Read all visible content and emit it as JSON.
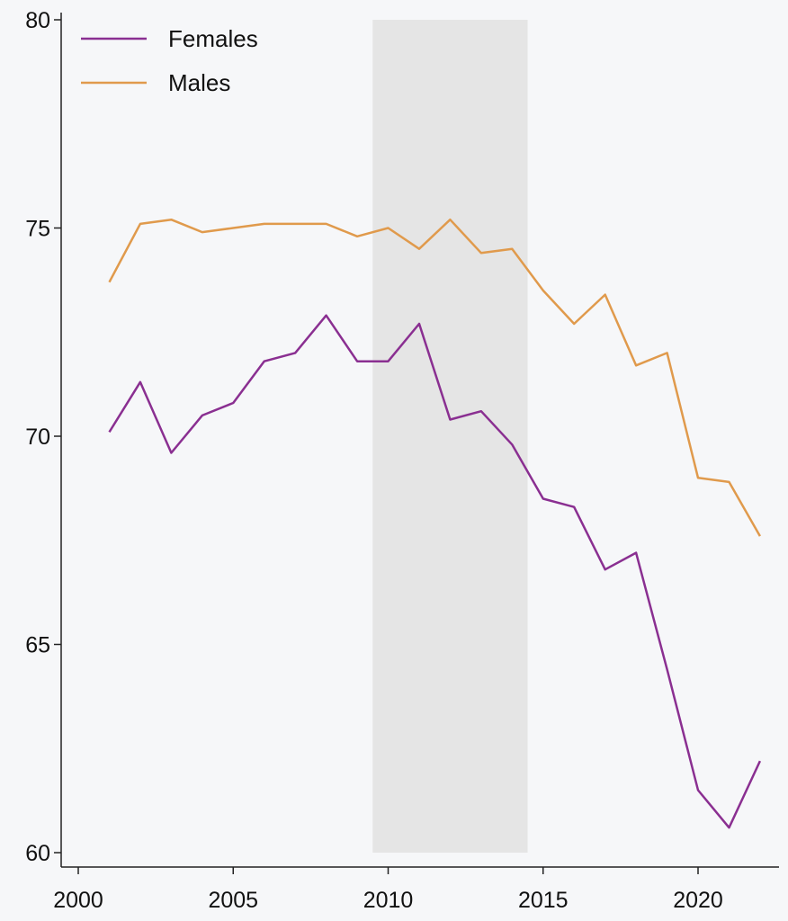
{
  "chart_data": {
    "type": "line",
    "title": "",
    "xlabel": "",
    "ylabel": "",
    "xlim": [
      2000,
      2022
    ],
    "ylim": [
      60,
      80
    ],
    "x_ticks": [
      2000,
      2005,
      2010,
      2015,
      2020
    ],
    "y_ticks": [
      60,
      65,
      70,
      75,
      80
    ],
    "grid": false,
    "legend_position": "top-left",
    "shaded_region": {
      "x_start": 2009.5,
      "x_end": 2014.5,
      "color": "#e5e5e5"
    },
    "x": [
      2001,
      2002,
      2003,
      2004,
      2005,
      2006,
      2007,
      2008,
      2009,
      2010,
      2011,
      2012,
      2013,
      2014,
      2015,
      2016,
      2017,
      2018,
      2019,
      2020,
      2021,
      2022
    ],
    "series": [
      {
        "name": "Females",
        "color": "#8a2f91",
        "values": [
          70.1,
          71.3,
          69.6,
          70.5,
          70.8,
          71.8,
          72.0,
          72.9,
          71.8,
          71.8,
          72.7,
          70.4,
          70.6,
          69.8,
          68.5,
          68.3,
          66.8,
          67.2,
          64.4,
          61.5,
          60.6,
          62.2
        ]
      },
      {
        "name": "Males",
        "color": "#e09a4c",
        "values": [
          73.7,
          75.1,
          75.2,
          74.9,
          75.0,
          75.1,
          75.1,
          75.1,
          74.8,
          75.0,
          74.5,
          75.2,
          74.4,
          74.5,
          73.5,
          72.7,
          73.4,
          71.7,
          72.0,
          69.0,
          68.9,
          67.6
        ]
      }
    ]
  }
}
